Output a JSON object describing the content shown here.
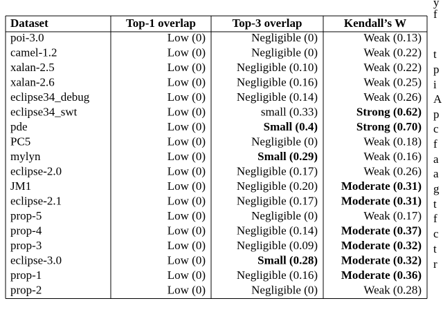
{
  "table": {
    "header": [
      "Dataset",
      "Top-1 overlap",
      "Top-3 overlap",
      "Kendall’s W"
    ],
    "rows": [
      [
        "poi-3.0",
        "Low (0)",
        "Negligible (0)",
        "Weak (0.13)"
      ],
      [
        "camel-1.2",
        "Low (0)",
        "Negligible (0)",
        "Weak (0.22)"
      ],
      [
        "xalan-2.5",
        "Low (0)",
        "Negligible (0.10)",
        "Weak (0.22)"
      ],
      [
        "xalan-2.6",
        "Low (0)",
        "Negligible (0.16)",
        "Weak (0.25)"
      ],
      [
        "eclipse34_debug",
        "Low (0)",
        "Negligible (0.14)",
        "Weak (0.26)"
      ],
      [
        "eclipse34_swt",
        "Low (0)",
        "small (0.33)",
        {
          "text": "Strong (0.62)",
          "bold": true
        }
      ],
      [
        "pde",
        "Low (0)",
        {
          "text": "Small (0.4)",
          "bold": true
        },
        {
          "text": "Strong (0.70)",
          "bold": true
        }
      ],
      [
        "PC5",
        "Low (0)",
        "Negligible (0)",
        "Weak (0.18)"
      ],
      [
        "mylyn",
        "Low (0)",
        {
          "text": "Small (0.29)",
          "bold": true
        },
        "Weak (0.16)"
      ],
      [
        "eclipse-2.0",
        "Low (0)",
        "Negligible (0.17)",
        "Weak (0.26)"
      ],
      [
        "JM1",
        "Low (0)",
        "Negligible (0.20)",
        {
          "text": "Moderate (0.31)",
          "bold": true
        }
      ],
      [
        "eclipse-2.1",
        "Low (0)",
        "Negligible (0.17)",
        {
          "text": "Moderate (0.31)",
          "bold": true
        }
      ],
      [
        "prop-5",
        "Low (0)",
        "Negligible (0)",
        "Weak (0.17)"
      ],
      [
        "prop-4",
        "Low (0)",
        "Negligible (0.14)",
        {
          "text": "Moderate (0.37)",
          "bold": true
        }
      ],
      [
        "prop-3",
        "Low (0)",
        "Negligible (0.09)",
        {
          "text": "Moderate (0.32)",
          "bold": true
        }
      ],
      [
        "eclipse-3.0",
        "Low (0)",
        {
          "text": "Small (0.28)",
          "bold": true
        },
        {
          "text": "Moderate (0.32)",
          "bold": true
        }
      ],
      [
        "prop-1",
        "Low (0)",
        "Negligible (0.16)",
        {
          "text": "Moderate (0.36)",
          "bold": true
        }
      ],
      [
        "prop-2",
        "Low (0)",
        "Negligible (0)",
        "Weak (0.28)"
      ]
    ]
  },
  "margin_text": [
    "y",
    "f",
    "t",
    "p",
    "i",
    "A",
    "p",
    "c",
    "f",
    "a",
    "a",
    "g",
    "t",
    "f",
    "c",
    "t",
    "r"
  ]
}
